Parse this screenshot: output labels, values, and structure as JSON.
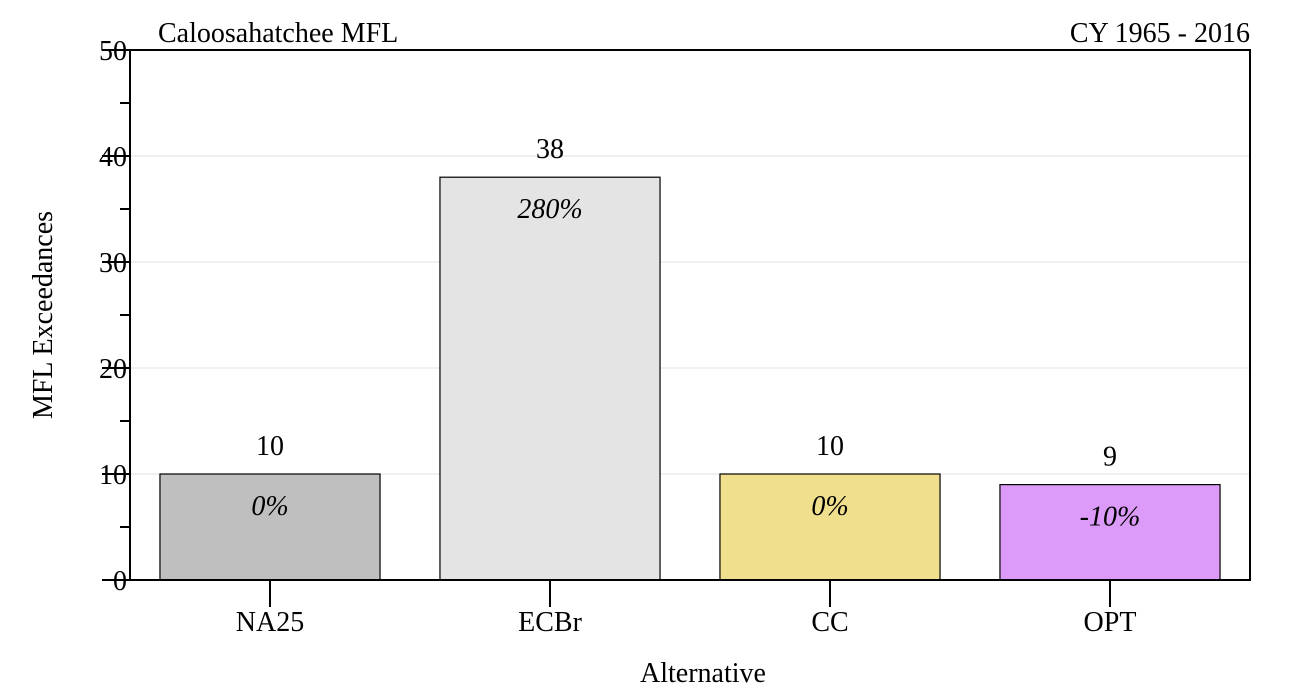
{
  "chart_data": {
    "type": "bar",
    "title": "Caloosahatchee MFL",
    "subtitle": "CY 1965 - 2016",
    "xlabel": "Alternative",
    "ylabel": "MFL Exceedances",
    "ylim": [
      0,
      50
    ],
    "yticks": [
      "0",
      "10",
      "20",
      "30",
      "40",
      "50"
    ],
    "grid": true,
    "categories": [
      "NA25",
      "ECBr",
      "CC",
      "OPT"
    ],
    "values": [
      10,
      38,
      10,
      9
    ],
    "value_labels": [
      "10",
      "38",
      "10",
      "9"
    ],
    "percent_labels": [
      "0%",
      "280%",
      "0%",
      "-10%"
    ],
    "colors": [
      "#bfbfbf",
      "#e4e4e4",
      "#f0df8d",
      "#dd9bf9"
    ]
  }
}
